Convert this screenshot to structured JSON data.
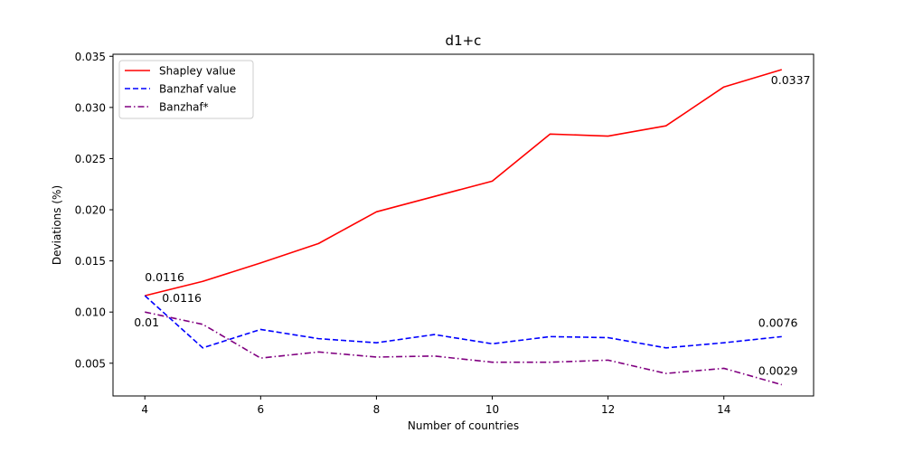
{
  "chart_data": {
    "type": "line",
    "title": "d1+c",
    "xlabel": "Number of countries",
    "ylabel": "Deviations (%)",
    "xlim": [
      3.45,
      15.55
    ],
    "ylim": [
      0.0018,
      0.0352
    ],
    "xticks": [
      4,
      6,
      8,
      10,
      12,
      14
    ],
    "yticks": [
      0.005,
      0.01,
      0.015,
      0.02,
      0.025,
      0.03,
      0.035
    ],
    "ytick_labels": [
      "0.005",
      "0.010",
      "0.015",
      "0.020",
      "0.025",
      "0.030",
      "0.035"
    ],
    "grid": false,
    "legend_position": "top-left",
    "x": [
      4,
      5,
      6,
      7,
      8,
      9,
      10,
      11,
      12,
      13,
      14,
      15
    ],
    "series": [
      {
        "name": "Shapley value",
        "color": "#ff0000",
        "linestyle": "solid",
        "values": [
          0.0116,
          0.013,
          0.0148,
          0.0167,
          0.0198,
          0.0213,
          0.0228,
          0.0274,
          0.0272,
          0.0282,
          0.032,
          0.0337
        ]
      },
      {
        "name": "Banzhaf value",
        "color": "#0000ff",
        "linestyle": "dashed",
        "values": [
          0.0116,
          0.0065,
          0.0083,
          0.0074,
          0.007,
          0.0078,
          0.0069,
          0.0076,
          0.0075,
          0.0065,
          0.007,
          0.0076
        ]
      },
      {
        "name": "Banzhaf*",
        "color": "#800080",
        "linestyle": "dashdot",
        "values": [
          0.01,
          0.0088,
          0.0055,
          0.0061,
          0.0056,
          0.0057,
          0.0051,
          0.0051,
          0.0053,
          0.004,
          0.0045,
          0.0029
        ]
      }
    ],
    "annotations": [
      {
        "text": "0.0116",
        "x": 4,
        "y": 0.0116,
        "anchor": "above",
        "series": "Shapley value"
      },
      {
        "text": "0.0337",
        "x": 15,
        "y": 0.0337,
        "anchor": "below-left",
        "series": "Shapley value"
      },
      {
        "text": "0.0116",
        "x": 4,
        "y": 0.0116,
        "anchor": "below-right",
        "series": "Banzhaf value"
      },
      {
        "text": "0.0076",
        "x": 15,
        "y": 0.0076,
        "anchor": "above-left",
        "series": "Banzhaf value"
      },
      {
        "text": "0.01",
        "x": 4,
        "y": 0.01,
        "anchor": "below-left",
        "series": "Banzhaf*"
      },
      {
        "text": "0.0029",
        "x": 15,
        "y": 0.0029,
        "anchor": "above-left",
        "series": "Banzhaf*"
      }
    ]
  }
}
